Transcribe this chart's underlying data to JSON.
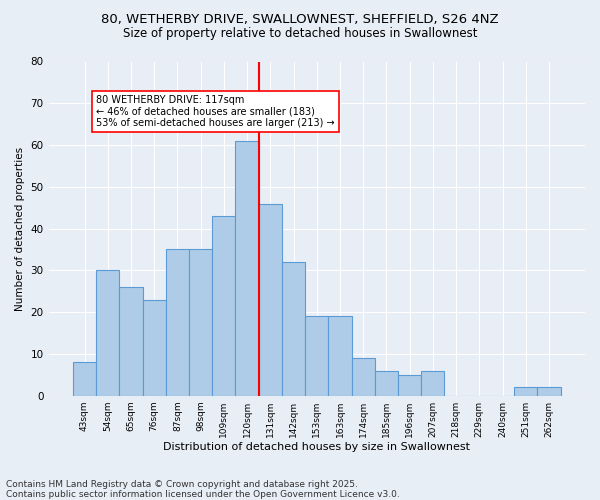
{
  "title1": "80, WETHERBY DRIVE, SWALLOWNEST, SHEFFIELD, S26 4NZ",
  "title2": "Size of property relative to detached houses in Swallownest",
  "xlabel": "Distribution of detached houses by size in Swallownest",
  "ylabel": "Number of detached properties",
  "footnote1": "Contains HM Land Registry data © Crown copyright and database right 2025.",
  "footnote2": "Contains public sector information licensed under the Open Government Licence v3.0.",
  "bin_labels": [
    "43sqm",
    "54sqm",
    "65sqm",
    "76sqm",
    "87sqm",
    "98sqm",
    "109sqm",
    "120sqm",
    "131sqm",
    "142sqm",
    "153sqm",
    "163sqm",
    "174sqm",
    "185sqm",
    "196sqm",
    "207sqm",
    "218sqm",
    "229sqm",
    "240sqm",
    "251sqm",
    "262sqm"
  ],
  "bar_values": [
    8,
    30,
    26,
    23,
    35,
    35,
    43,
    61,
    46,
    32,
    19,
    19,
    9,
    6,
    5,
    6,
    0,
    0,
    0,
    2,
    2
  ],
  "bar_color": "#aecce8",
  "bar_edge_color": "#5b9bd5",
  "reference_line_x": 7.5,
  "annotation_text": "80 WETHERBY DRIVE: 117sqm\n← 46% of detached houses are smaller (183)\n53% of semi-detached houses are larger (213) →",
  "annotation_box_color": "white",
  "annotation_box_edge_color": "red",
  "ref_line_color": "red",
  "ylim": [
    0,
    80
  ],
  "yticks": [
    0,
    10,
    20,
    30,
    40,
    50,
    60,
    70,
    80
  ],
  "bg_color": "#e8eef6",
  "plot_bg_color": "#e8eef6",
  "title1_fontsize": 9.5,
  "title2_fontsize": 8.5,
  "axis_fontsize": 7.5,
  "footnote_fontsize": 6.5
}
